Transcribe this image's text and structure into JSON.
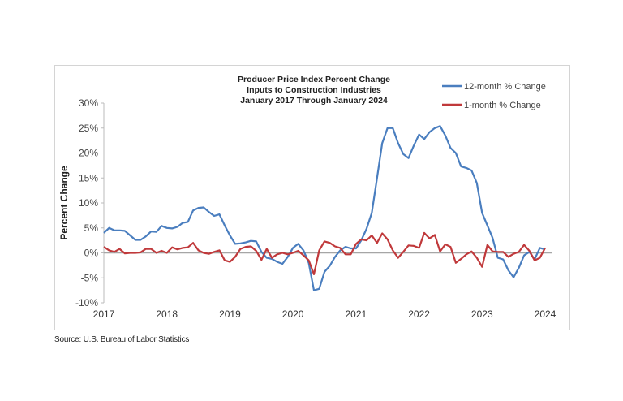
{
  "source": "Source: U.S. Bureau of Labor Statistics",
  "chart_data": {
    "type": "line",
    "title": [
      "Producer Price Index Percent Change",
      "Inputs to Construction Industries",
      "January 2017 Through January 2024"
    ],
    "ylabel": "Percent Change",
    "xlabel": "",
    "ylim": [
      -10,
      30
    ],
    "yticks": [
      -10,
      -5,
      0,
      5,
      10,
      15,
      20,
      25,
      30
    ],
    "ytick_labels": [
      "-10%",
      "-5%",
      "0%",
      "5%",
      "10%",
      "15%",
      "20%",
      "25%",
      "30%"
    ],
    "xticks": [
      "2017",
      "2018",
      "2019",
      "2020",
      "2021",
      "2022",
      "2023",
      "2024"
    ],
    "x_start": "2017-01",
    "x_end": "2024-01",
    "frequency": "monthly",
    "grid": false,
    "legend_position": "top-right",
    "series": [
      {
        "name": "12-month % Change",
        "color": "#4a7ebf",
        "values": [
          4.0,
          5.0,
          4.5,
          4.5,
          4.4,
          3.5,
          2.6,
          2.6,
          3.3,
          4.3,
          4.2,
          5.4,
          5.0,
          4.9,
          5.2,
          6.0,
          6.2,
          8.5,
          9.0,
          9.1,
          8.2,
          7.4,
          7.7,
          5.5,
          3.5,
          1.8,
          1.9,
          2.1,
          2.4,
          2.3,
          0.2,
          -1.0,
          -1.2,
          -1.8,
          -2.2,
          -0.8,
          1.0,
          1.8,
          0.5,
          -2.0,
          -7.5,
          -7.2,
          -3.8,
          -2.6,
          -0.8,
          0.5,
          1.2,
          0.9,
          0.9,
          2.5,
          4.8,
          8.0,
          15.0,
          22.0,
          25.0,
          25.0,
          22.0,
          19.8,
          19.0,
          21.5,
          23.7,
          22.8,
          24.2,
          25.0,
          25.4,
          23.5,
          21.0,
          20.0,
          17.3,
          17.0,
          16.5,
          14.0,
          8.0,
          5.5,
          3.0,
          -1.0,
          -1.3,
          -3.5,
          -4.9,
          -3.0,
          -0.5,
          0.2,
          -1.3,
          1.0,
          0.7
        ]
      },
      {
        "name": "1-month % Change",
        "color": "#c0393b",
        "values": [
          1.2,
          0.5,
          0.2,
          0.8,
          -0.1,
          0.0,
          0.0,
          0.1,
          0.8,
          0.8,
          0.0,
          0.4,
          0.0,
          1.1,
          0.7,
          1.0,
          1.1,
          2.0,
          0.5,
          0.0,
          -0.2,
          0.2,
          0.5,
          -1.5,
          -1.8,
          -0.8,
          0.8,
          1.2,
          1.3,
          0.4,
          -1.4,
          0.8,
          -1.0,
          -0.3,
          0.0,
          -0.3,
          0.0,
          0.4,
          -0.5,
          -1.5,
          -4.3,
          0.5,
          2.3,
          2.0,
          1.3,
          1.0,
          -0.3,
          -0.3,
          1.8,
          2.7,
          2.5,
          3.5,
          2.0,
          3.9,
          2.7,
          0.5,
          -1.0,
          0.2,
          1.5,
          1.4,
          1.0,
          4.0,
          2.9,
          3.6,
          0.3,
          1.7,
          1.2,
          -2.0,
          -1.2,
          -0.3,
          0.3,
          -1.0,
          -2.8,
          1.6,
          0.3,
          0.2,
          0.2,
          -0.8,
          -0.2,
          0.2,
          1.6,
          0.4,
          -1.5,
          -1.0,
          1.0
        ]
      }
    ]
  }
}
